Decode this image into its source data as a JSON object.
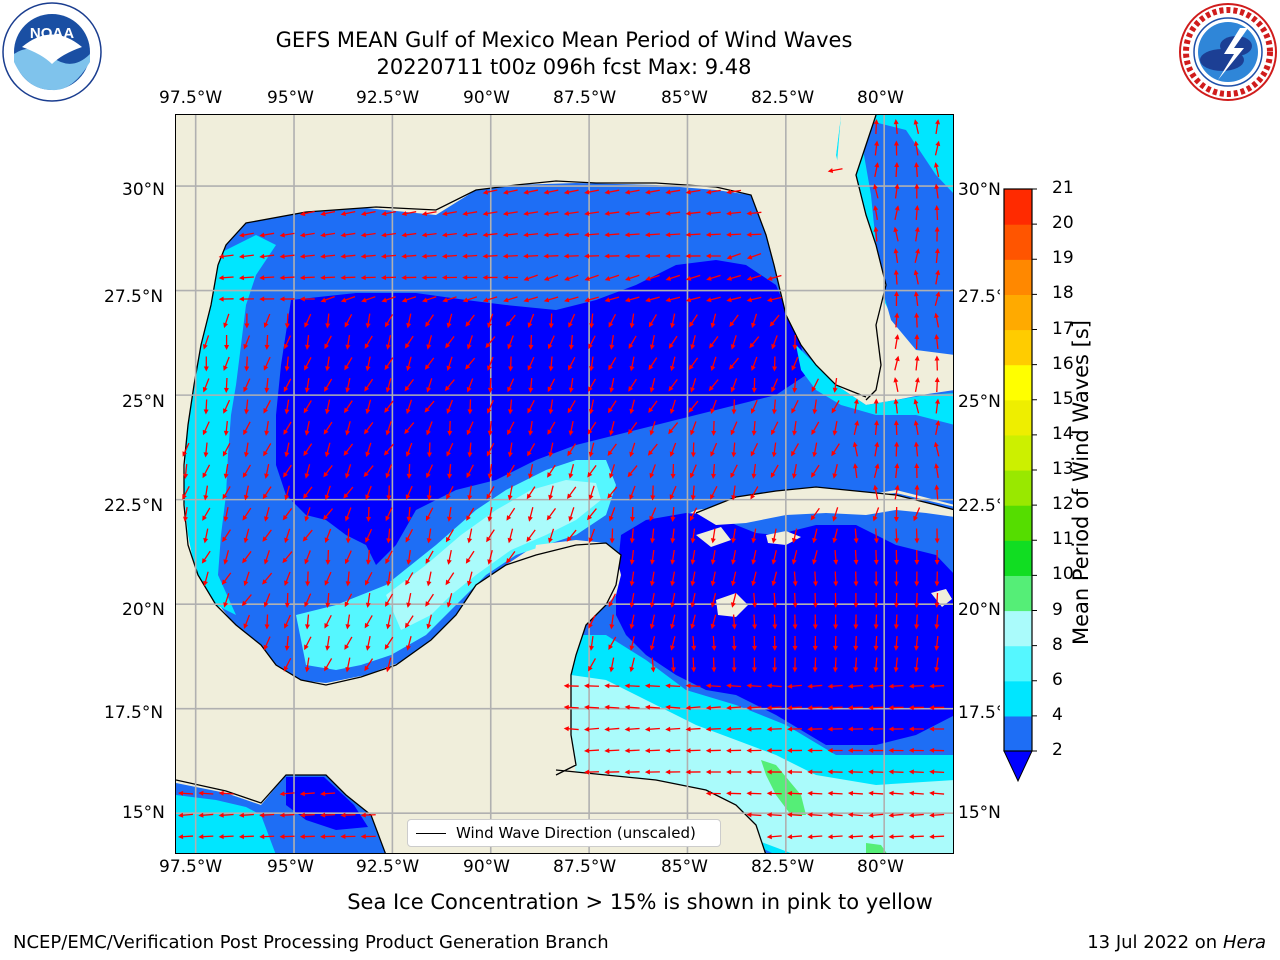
{
  "header": {
    "title_line1": "GEFS MEAN Gulf of Mexico Mean Period of Wind Waves",
    "title_line2": "20220711 t00z 096h fcst   Max: 9.48"
  },
  "logos": {
    "left": {
      "name": "NOAA",
      "text": "NOAA",
      "ring_text": "NATIONAL OCEANIC AND ATMOSPHERIC ADMINISTRATION · U.S. DEPARTMENT OF COMMERCE"
    },
    "right": {
      "name": "National Weather Service",
      "ring_text": "NATIONAL WEATHER SERVICE"
    }
  },
  "axes": {
    "lon_labels": [
      "97.5°W",
      "95°W",
      "92.5°W",
      "90°W",
      "87.5°W",
      "85°W",
      "82.5°W",
      "80°W"
    ],
    "lat_labels": [
      "30°N",
      "27.5°N",
      "25°N",
      "22.5°N",
      "20°N",
      "17.5°N",
      "15°N"
    ],
    "lon_range": [
      -98,
      -78.2
    ],
    "lat_range": [
      14,
      31.7
    ]
  },
  "legend": {
    "label": "Wind Wave Direction (unscaled)"
  },
  "colorbar": {
    "label": "Mean Period of Wind Waves [s]",
    "ticks": [
      "2",
      "4",
      "6",
      "8",
      "9",
      "10",
      "11",
      "12",
      "13",
      "14",
      "15",
      "16",
      "17",
      "18",
      "19",
      "20",
      "21"
    ],
    "colors": [
      "#1e6ef5",
      "#00e6ff",
      "#55f7ff",
      "#aafbfb",
      "#55ee77",
      "#11dd22",
      "#55dd00",
      "#99e800",
      "#ccf000",
      "#eeee00",
      "#ffff00",
      "#ffcc00",
      "#ffaa00",
      "#ff8800",
      "#ff5500",
      "#ff2a00",
      "#ff0000"
    ],
    "extend_color": "#0000ff"
  },
  "colors": {
    "land": "#f0eedb",
    "level_2_4": "#1e6ef5",
    "level_under_2": "#0000ff",
    "level_4_6": "#00e6ff",
    "level_6_8": "#55f7ff",
    "level_8_9": "#aafbfb",
    "level_9_10": "#55ee77",
    "arrow": "#ff0000",
    "grid": "#b0b0b0"
  },
  "notes": {
    "sea_ice": "Sea Ice Concentration > 15% is shown in pink to yellow"
  },
  "footer": {
    "left": "NCEP/EMC/Verification Post Processing Product Generation Branch",
    "right_prefix": "13 Jul 2022 on ",
    "right_machine": "Hera"
  }
}
